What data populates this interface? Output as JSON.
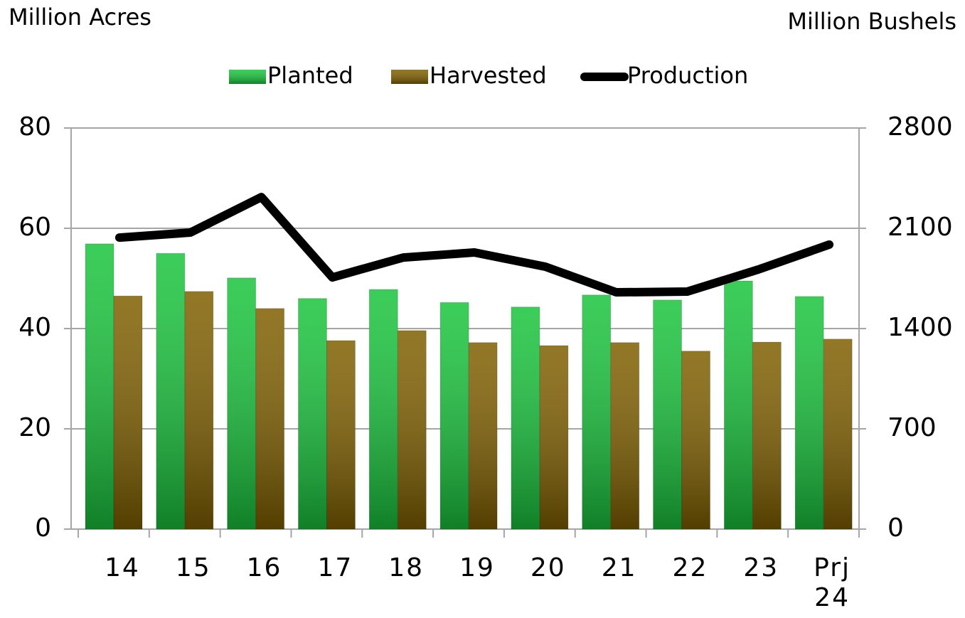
{
  "chart_data": {
    "type": "bar",
    "y_label": "Million Acres",
    "y2_label": "Million Bushels",
    "categories": [
      "14",
      "15",
      "16",
      "17",
      "18",
      "19",
      "20",
      "21",
      "22",
      "23",
      "Prj 24"
    ],
    "series": [
      {
        "name": "Planted",
        "color": "#19c43c",
        "values": [
          56.9,
          55.0,
          50.1,
          46.0,
          47.8,
          45.2,
          44.3,
          46.7,
          45.7,
          49.5,
          46.4
        ]
      },
      {
        "name": "Harvested",
        "color": "#7f5f00",
        "values": [
          46.5,
          47.4,
          44.0,
          37.6,
          39.6,
          37.2,
          36.6,
          37.2,
          35.5,
          37.3,
          37.9
        ]
      },
      {
        "name": "Production",
        "color": "#000000",
        "type": "line",
        "axis": "y2",
        "values": [
          2035,
          2070,
          2318,
          1757,
          1896,
          1931,
          1832,
          1653,
          1658,
          1812,
          1986
        ]
      }
    ],
    "ylim": [
      0,
      80
    ],
    "yticks": [
      0,
      20,
      40,
      60,
      80
    ],
    "y2lim": [
      0,
      2800
    ],
    "y2ticks": [
      0,
      700,
      1400,
      2100,
      2800
    ],
    "grid": true,
    "legend": "top"
  }
}
